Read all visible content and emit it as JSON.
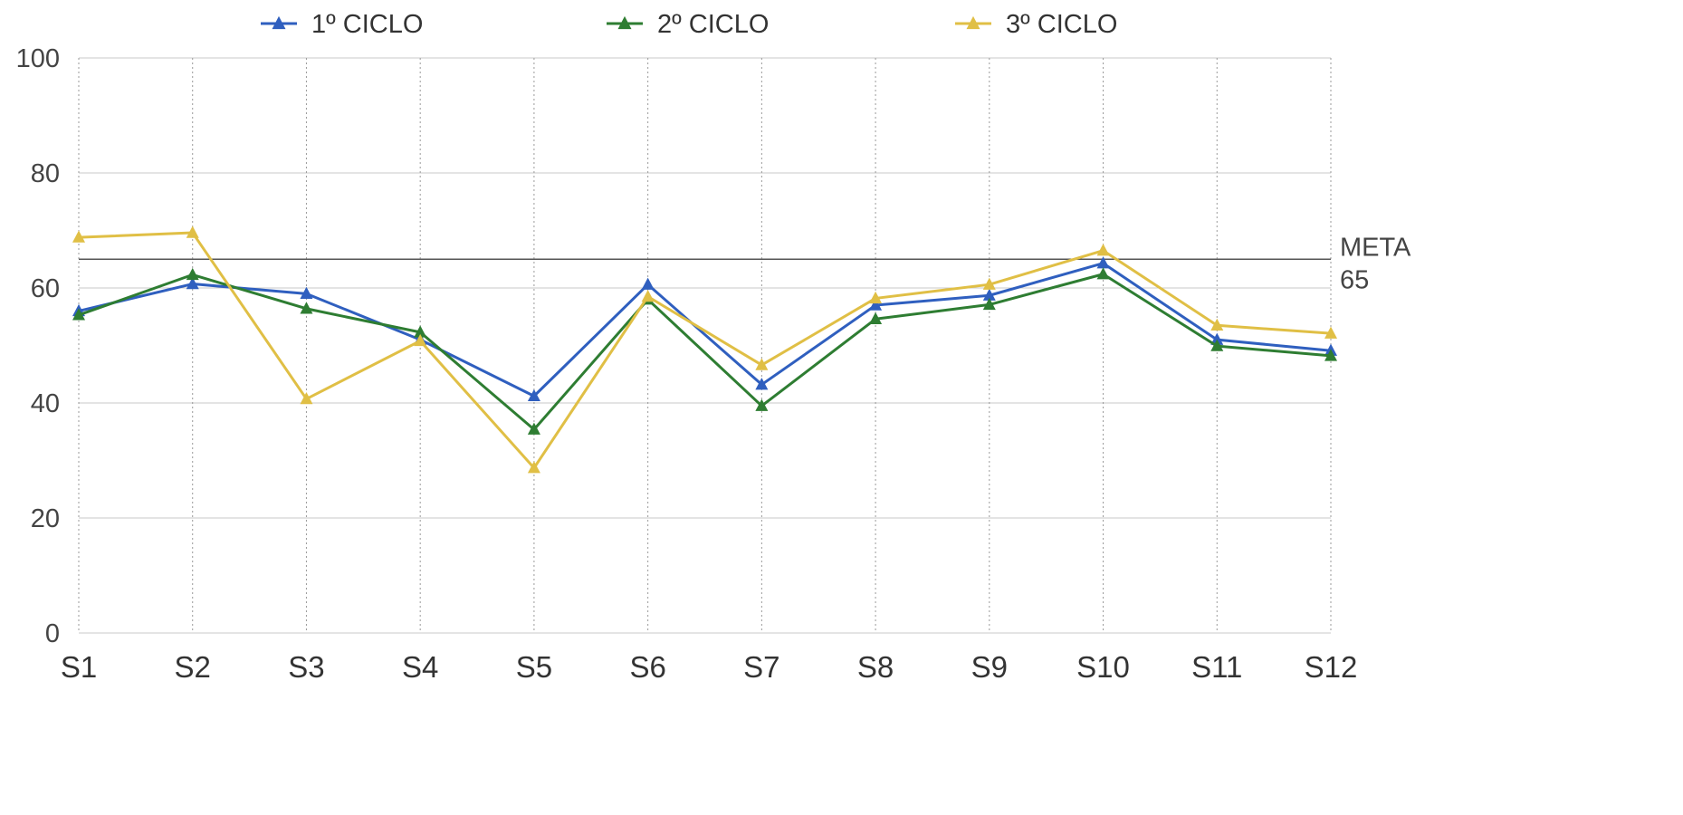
{
  "chart_data": {
    "type": "line",
    "title": "",
    "xlabel": "",
    "ylabel": "",
    "categories": [
      "S1",
      "S2",
      "S3",
      "S4",
      "S5",
      "S6",
      "S7",
      "S8",
      "S9",
      "S10",
      "S11",
      "S12"
    ],
    "ylim": [
      0,
      100
    ],
    "yticks": [
      0,
      20,
      40,
      60,
      80,
      100
    ],
    "grid": {
      "horizontal": true,
      "vertical": true,
      "vertical_style": "dotted"
    },
    "legend_position": "top-center",
    "marker": "triangle",
    "series": [
      {
        "name": "1º CICLO",
        "color": "#2f5fbf",
        "values": [
          56,
          60.7,
          59,
          51,
          41.2,
          60.6,
          43.2,
          57,
          58.7,
          64.3,
          51,
          49.1
        ]
      },
      {
        "name": "2º CICLO",
        "color": "#2e7d32",
        "values": [
          55.3,
          62.3,
          56.4,
          52.3,
          35.4,
          58,
          39.5,
          54.6,
          57.1,
          62.4,
          49.9,
          48.2
        ]
      },
      {
        "name": "3º CICLO",
        "color": "#e0bf45",
        "values": [
          68.8,
          69.6,
          40.7,
          50.8,
          28.7,
          58.5,
          46.6,
          58.2,
          60.6,
          66.5,
          53.5,
          52.1
        ]
      }
    ],
    "reference_line": {
      "value": 65,
      "label_line1": "META",
      "label_line2": "65",
      "color": "#666666"
    }
  }
}
